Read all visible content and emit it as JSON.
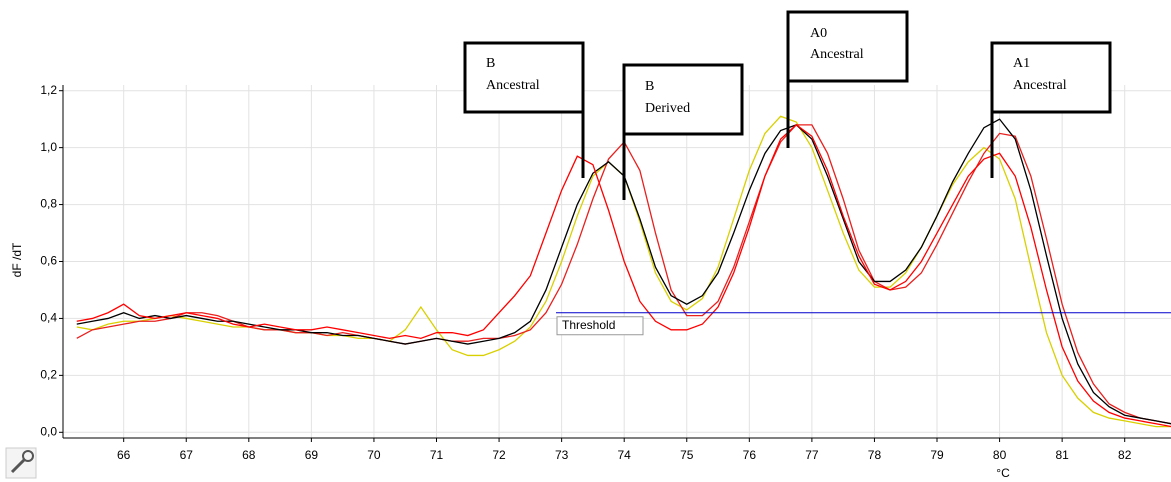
{
  "chart_data": {
    "type": "line",
    "x_label": "°C",
    "y_label": "dF /dT",
    "x": [
      65.25,
      65.5,
      65.75,
      66,
      66.25,
      66.5,
      66.75,
      67,
      67.25,
      67.5,
      67.75,
      68,
      68.25,
      68.5,
      68.75,
      69,
      69.25,
      69.5,
      69.75,
      70,
      70.25,
      70.5,
      70.75,
      71,
      71.25,
      71.5,
      71.75,
      72,
      72.25,
      72.5,
      72.75,
      73,
      73.25,
      73.5,
      73.75,
      74,
      74.25,
      74.5,
      74.75,
      75,
      75.25,
      75.5,
      75.75,
      76,
      76.25,
      76.5,
      76.75,
      77,
      77.25,
      77.5,
      77.75,
      78,
      78.25,
      78.5,
      78.75,
      79,
      79.25,
      79.5,
      79.75,
      80,
      80.25,
      80.5,
      80.75,
      81,
      81.25,
      81.5,
      81.75,
      82,
      82.25,
      82.5,
      82.75
    ],
    "series": [
      {
        "color": "#d9d000",
        "values": [
          0.37,
          0.36,
          0.38,
          0.39,
          0.39,
          0.4,
          0.41,
          0.4,
          0.39,
          0.38,
          0.37,
          0.37,
          0.36,
          0.36,
          0.35,
          0.35,
          0.34,
          0.34,
          0.33,
          0.33,
          0.32,
          0.36,
          0.44,
          0.36,
          0.29,
          0.27,
          0.27,
          0.29,
          0.32,
          0.37,
          0.46,
          0.6,
          0.76,
          0.9,
          0.95,
          0.9,
          0.74,
          0.56,
          0.46,
          0.43,
          0.47,
          0.58,
          0.75,
          0.92,
          1.05,
          1.11,
          1.09,
          1.0,
          0.85,
          0.7,
          0.57,
          0.51,
          0.51,
          0.56,
          0.65,
          0.76,
          0.87,
          0.95,
          1.0,
          0.96,
          0.82,
          0.58,
          0.35,
          0.2,
          0.12,
          0.07,
          0.05,
          0.04,
          0.03,
          0.02,
          0.02
        ]
      },
      {
        "color": "#e8201e",
        "values": [
          0.33,
          0.36,
          0.37,
          0.38,
          0.39,
          0.39,
          0.4,
          0.42,
          0.42,
          0.41,
          0.39,
          0.37,
          0.36,
          0.36,
          0.35,
          0.35,
          0.34,
          0.35,
          0.34,
          0.33,
          0.32,
          0.31,
          0.32,
          0.33,
          0.32,
          0.32,
          0.33,
          0.33,
          0.34,
          0.36,
          0.42,
          0.52,
          0.66,
          0.82,
          0.96,
          1.02,
          0.92,
          0.7,
          0.5,
          0.41,
          0.41,
          0.46,
          0.58,
          0.74,
          0.9,
          1.02,
          1.08,
          1.08,
          0.98,
          0.82,
          0.64,
          0.53,
          0.5,
          0.51,
          0.56,
          0.66,
          0.77,
          0.88,
          0.98,
          1.05,
          1.04,
          0.9,
          0.68,
          0.45,
          0.28,
          0.17,
          0.1,
          0.07,
          0.05,
          0.04,
          0.03
        ]
      },
      {
        "color": "#000000",
        "values": [
          0.38,
          0.39,
          0.4,
          0.42,
          0.4,
          0.41,
          0.4,
          0.41,
          0.4,
          0.39,
          0.39,
          0.38,
          0.37,
          0.36,
          0.36,
          0.35,
          0.35,
          0.34,
          0.34,
          0.33,
          0.32,
          0.31,
          0.32,
          0.33,
          0.32,
          0.31,
          0.32,
          0.33,
          0.35,
          0.39,
          0.5,
          0.65,
          0.8,
          0.91,
          0.95,
          0.9,
          0.75,
          0.58,
          0.48,
          0.45,
          0.48,
          0.56,
          0.7,
          0.85,
          0.98,
          1.06,
          1.08,
          1.03,
          0.9,
          0.75,
          0.6,
          0.53,
          0.53,
          0.57,
          0.65,
          0.76,
          0.88,
          0.98,
          1.07,
          1.1,
          1.03,
          0.85,
          0.62,
          0.4,
          0.24,
          0.14,
          0.09,
          0.06,
          0.05,
          0.04,
          0.03
        ]
      },
      {
        "color": "#ff0000",
        "values": [
          0.39,
          0.4,
          0.42,
          0.45,
          0.41,
          0.4,
          0.41,
          0.42,
          0.41,
          0.4,
          0.38,
          0.37,
          0.38,
          0.37,
          0.36,
          0.36,
          0.37,
          0.36,
          0.35,
          0.34,
          0.33,
          0.34,
          0.33,
          0.35,
          0.35,
          0.34,
          0.36,
          0.42,
          0.48,
          0.55,
          0.7,
          0.85,
          0.97,
          0.94,
          0.78,
          0.6,
          0.46,
          0.39,
          0.36,
          0.36,
          0.38,
          0.44,
          0.56,
          0.72,
          0.9,
          1.03,
          1.08,
          1.04,
          0.92,
          0.76,
          0.62,
          0.52,
          0.5,
          0.53,
          0.6,
          0.7,
          0.8,
          0.9,
          0.96,
          0.98,
          0.9,
          0.72,
          0.5,
          0.3,
          0.18,
          0.11,
          0.07,
          0.05,
          0.04,
          0.03,
          0.02
        ]
      }
    ],
    "threshold": {
      "value": 0.42,
      "label": "Threshold",
      "color": "#0000cc"
    },
    "annotations": [
      [
        "B",
        "Ancestral"
      ],
      [
        "B",
        "Derived"
      ],
      [
        "A0",
        "Ancestral"
      ],
      [
        "A1",
        "Ancestral"
      ]
    ],
    "xlim": [
      65.03,
      82.74
    ],
    "ylim": [
      -0.02,
      1.22
    ],
    "xticks": [
      66,
      67,
      68,
      69,
      70,
      71,
      72,
      73,
      74,
      75,
      76,
      77,
      78,
      79,
      80,
      81,
      82
    ],
    "yticks": [
      {
        "value": 0,
        "label": "0,0"
      },
      {
        "value": 0.2,
        "label": "0,2"
      },
      {
        "value": 0.4,
        "label": "0,4"
      },
      {
        "value": 0.6,
        "label": "0,6"
      },
      {
        "value": 0.8,
        "label": "0,8"
      },
      {
        "value": 1.0,
        "label": "1,0"
      },
      {
        "value": 1.2,
        "label": "1,2"
      }
    ],
    "grid": true
  }
}
